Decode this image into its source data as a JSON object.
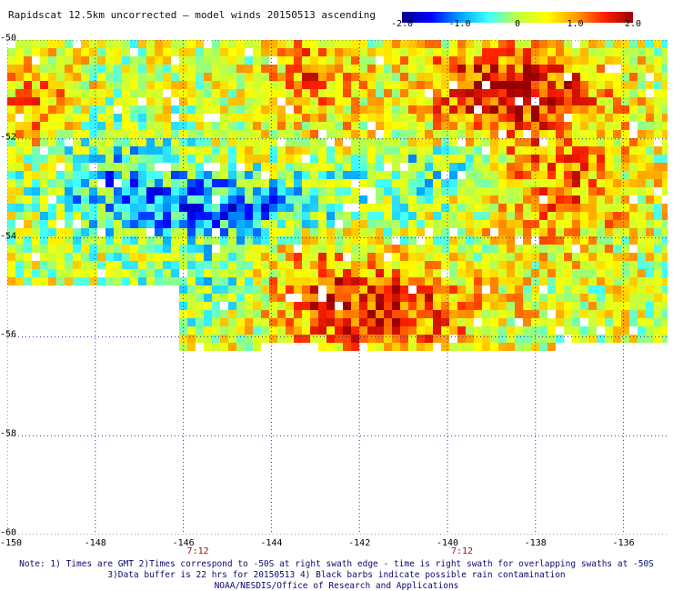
{
  "title": "Rapidscat 12.5km uncorrected — model winds 20150513 ascending",
  "colorbar": {
    "ticks": [
      "-2.0",
      "-1.0",
      "0",
      "1.0",
      "2.0"
    ],
    "tick_values": [
      -2.0,
      -1.0,
      0,
      1.0,
      2.0
    ],
    "range": [
      -2.0,
      2.0
    ],
    "colors": [
      "#00008f",
      "#0000ff",
      "#00a0ff",
      "#40ffff",
      "#c0ff40",
      "#ffff00",
      "#ffa000",
      "#ff2000",
      "#9b0000"
    ]
  },
  "map": {
    "lon_range": [
      -150,
      -135
    ],
    "lat_range": [
      -60,
      -50
    ],
    "lon_ticks": [
      "-150",
      "-148",
      "-146",
      "-144",
      "-142",
      "-140",
      "-138",
      "-136"
    ],
    "lon_tick_values": [
      -150,
      -148,
      -146,
      -144,
      -142,
      -140,
      -138,
      -136
    ],
    "lat_ticks": [
      "-50",
      "-52",
      "-54",
      "-56",
      "-58",
      "-60"
    ],
    "lat_tick_values": [
      -50,
      -52,
      -54,
      -56,
      -58,
      -60
    ],
    "swath_times": [
      {
        "label": "7:12",
        "lon": -146
      },
      {
        "label": "7:12",
        "lon": -140
      }
    ],
    "grid_style": "dotted-blue"
  },
  "notes": {
    "line1": "Note: 1) Times are GMT 2)Times correspond to -50S at right swath edge - time is right swath for overlapping swaths at -50S",
    "line2": "3)Data buffer is 22 hrs for 20150513 4) Black barbs indicate possible rain contamination",
    "line3": "NOAA/NESDIS/Office of Research and Applications"
  }
}
